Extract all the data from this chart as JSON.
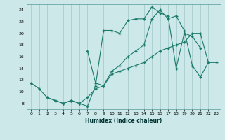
{
  "xlabel": "Humidex (Indice chaleur)",
  "background_color": "#cce8e8",
  "grid_color": "#aacccc",
  "line_color": "#1a7a6a",
  "xlim": [
    -0.5,
    23.5
  ],
  "ylim": [
    7.0,
    25.0
  ],
  "xticks": [
    0,
    1,
    2,
    3,
    4,
    5,
    6,
    7,
    8,
    9,
    10,
    11,
    12,
    13,
    14,
    15,
    16,
    17,
    18,
    19,
    20,
    21,
    22,
    23
  ],
  "yticks": [
    8,
    10,
    12,
    14,
    16,
    18,
    20,
    22,
    24
  ],
  "series1_x": [
    0,
    1,
    2,
    3,
    4,
    5,
    6,
    7,
    8,
    9,
    10,
    11,
    12,
    13,
    14,
    15,
    16,
    17,
    18,
    19,
    20,
    21
  ],
  "series1_y": [
    11.5,
    10.5,
    9.0,
    8.5,
    8.0,
    8.5,
    8.0,
    7.5,
    11.0,
    20.5,
    20.5,
    20.0,
    22.2,
    22.5,
    22.5,
    24.5,
    23.5,
    23.0,
    14.0,
    20.0,
    19.5,
    17.5
  ],
  "series2_x": [
    2,
    3,
    4,
    5,
    6,
    7,
    8,
    9,
    10,
    11,
    12,
    13,
    14,
    15,
    16,
    17,
    18,
    19,
    20,
    21,
    22
  ],
  "series2_y": [
    9.0,
    8.5,
    8.0,
    8.5,
    8.0,
    9.0,
    10.5,
    11.0,
    13.0,
    13.5,
    14.0,
    14.5,
    15.0,
    16.0,
    17.0,
    17.5,
    18.0,
    18.5,
    20.0,
    20.0,
    15.0
  ],
  "series3_x": [
    7,
    8,
    9,
    10,
    11,
    12,
    13,
    14,
    15,
    16,
    17,
    18,
    19,
    20,
    21,
    22,
    23
  ],
  "series3_y": [
    17.0,
    11.5,
    11.0,
    13.5,
    14.5,
    16.0,
    17.0,
    18.0,
    22.5,
    24.0,
    22.5,
    23.0,
    20.5,
    14.5,
    12.5,
    15.0,
    15.0
  ]
}
